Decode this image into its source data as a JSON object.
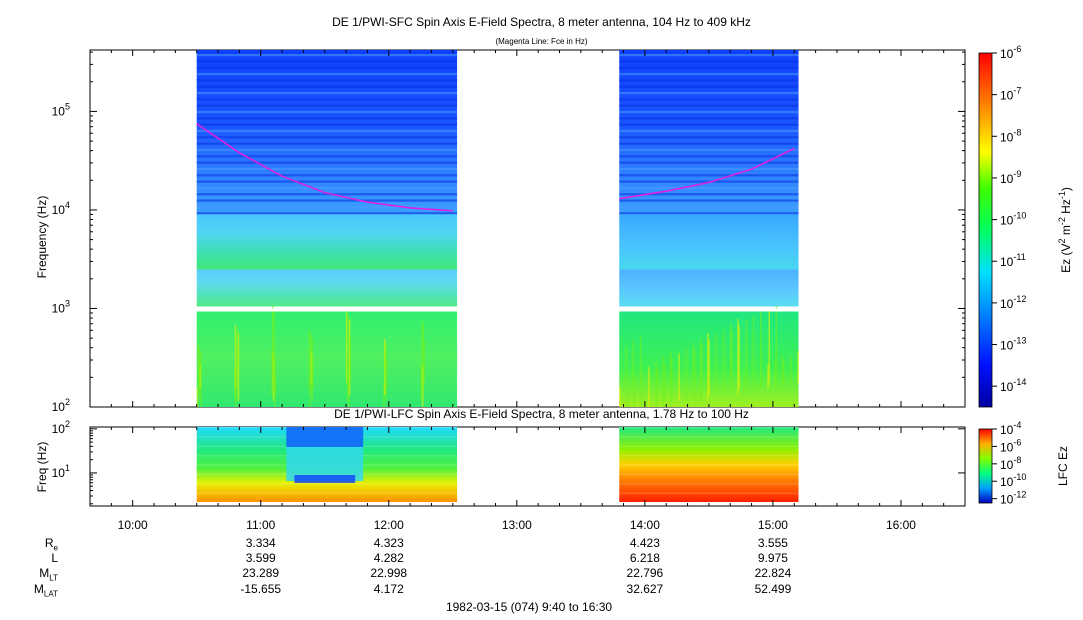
{
  "chart_data": [
    {
      "type": "heatmap",
      "panel": "SFC",
      "title": "DE 1/PWI-SFC  Spin Axis E-Field Spectra, 8 meter antenna, 104 Hz to 409 kHz",
      "subtitle": "(Magenta Line: Fce in Hz)",
      "ylabel": "Frequency (Hz)",
      "yscale": "log",
      "ylim": [
        100,
        420000
      ],
      "yticks": [
        {
          "value": 100,
          "base": "10",
          "exp": "2"
        },
        {
          "value": 1000,
          "base": "10",
          "exp": "3"
        },
        {
          "value": 10000,
          "base": "10",
          "exp": "4"
        },
        {
          "value": 100000,
          "base": "10",
          "exp": "5"
        }
      ],
      "data_intervals": [
        {
          "start": "10:30",
          "end": "12:32"
        },
        {
          "start": "13:48",
          "end": "15:12"
        }
      ],
      "fce_line_color": "#dd22dd",
      "fce_hz": [
        {
          "t": "10:30",
          "f": 75000
        },
        {
          "t": "10:50",
          "f": 38000
        },
        {
          "t": "11:10",
          "f": 22000
        },
        {
          "t": "11:30",
          "f": 15000
        },
        {
          "t": "11:50",
          "f": 12000
        },
        {
          "t": "12:10",
          "f": 10500
        },
        {
          "t": "12:30",
          "f": 9800
        },
        {
          "t": "13:48",
          "f": 13000
        },
        {
          "t": "14:10",
          "f": 15500
        },
        {
          "t": "14:30",
          "f": 19000
        },
        {
          "t": "14:50",
          "f": 26000
        },
        {
          "t": "15:10",
          "f": 42000
        }
      ],
      "colorbar": {
        "label": "Ez (V² m⁻² Hz⁻¹)",
        "label_parts": [
          "Ez (V",
          "2",
          " m",
          "-2",
          " Hz",
          "-1",
          ")"
        ],
        "range_log10": [
          -14.5,
          -6
        ],
        "ticks": [
          {
            "value": -6,
            "base": "10",
            "exp": "-6"
          },
          {
            "value": -7,
            "base": "10",
            "exp": "-7"
          },
          {
            "value": -8,
            "base": "10",
            "exp": "-8"
          },
          {
            "value": -9,
            "base": "10",
            "exp": "-9"
          },
          {
            "value": -10,
            "base": "10",
            "exp": "-10"
          },
          {
            "value": -11,
            "base": "10",
            "exp": "-11"
          },
          {
            "value": -12,
            "base": "10",
            "exp": "-12"
          },
          {
            "value": -13,
            "base": "10",
            "exp": "-13"
          },
          {
            "value": -14,
            "base": "10",
            "exp": "-14"
          }
        ]
      }
    },
    {
      "type": "heatmap",
      "panel": "LFC",
      "title": "DE 1/PWI-LFC  Spin Axis E-Field Spectra, 8 meter antenna, 1.78 Hz to 100 Hz",
      "ylabel": "Freq (Hz)",
      "yscale": "log",
      "ylim": [
        1.78,
        110
      ],
      "yticks": [
        {
          "value": 10,
          "base": "10",
          "exp": "1"
        },
        {
          "value": 100,
          "base": "10",
          "exp": "2"
        }
      ],
      "data_intervals": [
        {
          "start": "10:30",
          "end": "12:32"
        },
        {
          "start": "13:48",
          "end": "15:12"
        }
      ],
      "colorbar": {
        "label": "LFC Ez",
        "range_log10": [
          -12.5,
          -4
        ],
        "ticks": [
          {
            "value": -4,
            "base": "10",
            "exp": "-4"
          },
          {
            "value": -6,
            "base": "10",
            "exp": "-6"
          },
          {
            "value": -8,
            "base": "10",
            "exp": "-8"
          },
          {
            "value": -10,
            "base": "10",
            "exp": "-10"
          },
          {
            "value": -12,
            "base": "10",
            "exp": "-12"
          }
        ]
      }
    }
  ],
  "time_axis": {
    "range": [
      "09:40",
      "16:30"
    ],
    "tick_labels": [
      "10:00",
      "11:00",
      "12:00",
      "13:00",
      "14:00",
      "15:00",
      "16:00"
    ]
  },
  "ephemeris": {
    "rows": [
      {
        "name": "R",
        "sub": "e",
        "values": [
          "3.334",
          "4.323",
          "4.423",
          "3.555"
        ]
      },
      {
        "name": "L",
        "sub": "",
        "values": [
          "3.599",
          "4.282",
          "6.218",
          "9.975"
        ]
      },
      {
        "name": "M",
        "sub": "LT",
        "values": [
          "23.289",
          "22.998",
          "22.796",
          "22.824"
        ]
      },
      {
        "name": "M",
        "sub": "LAT",
        "values": [
          "-15.655",
          "4.172",
          "32.627",
          "52.499"
        ]
      }
    ],
    "times": [
      "11:00",
      "12:00",
      "14:00",
      "15:00"
    ]
  },
  "footer": "1982-03-15 (074) 9:40 to 16:30"
}
